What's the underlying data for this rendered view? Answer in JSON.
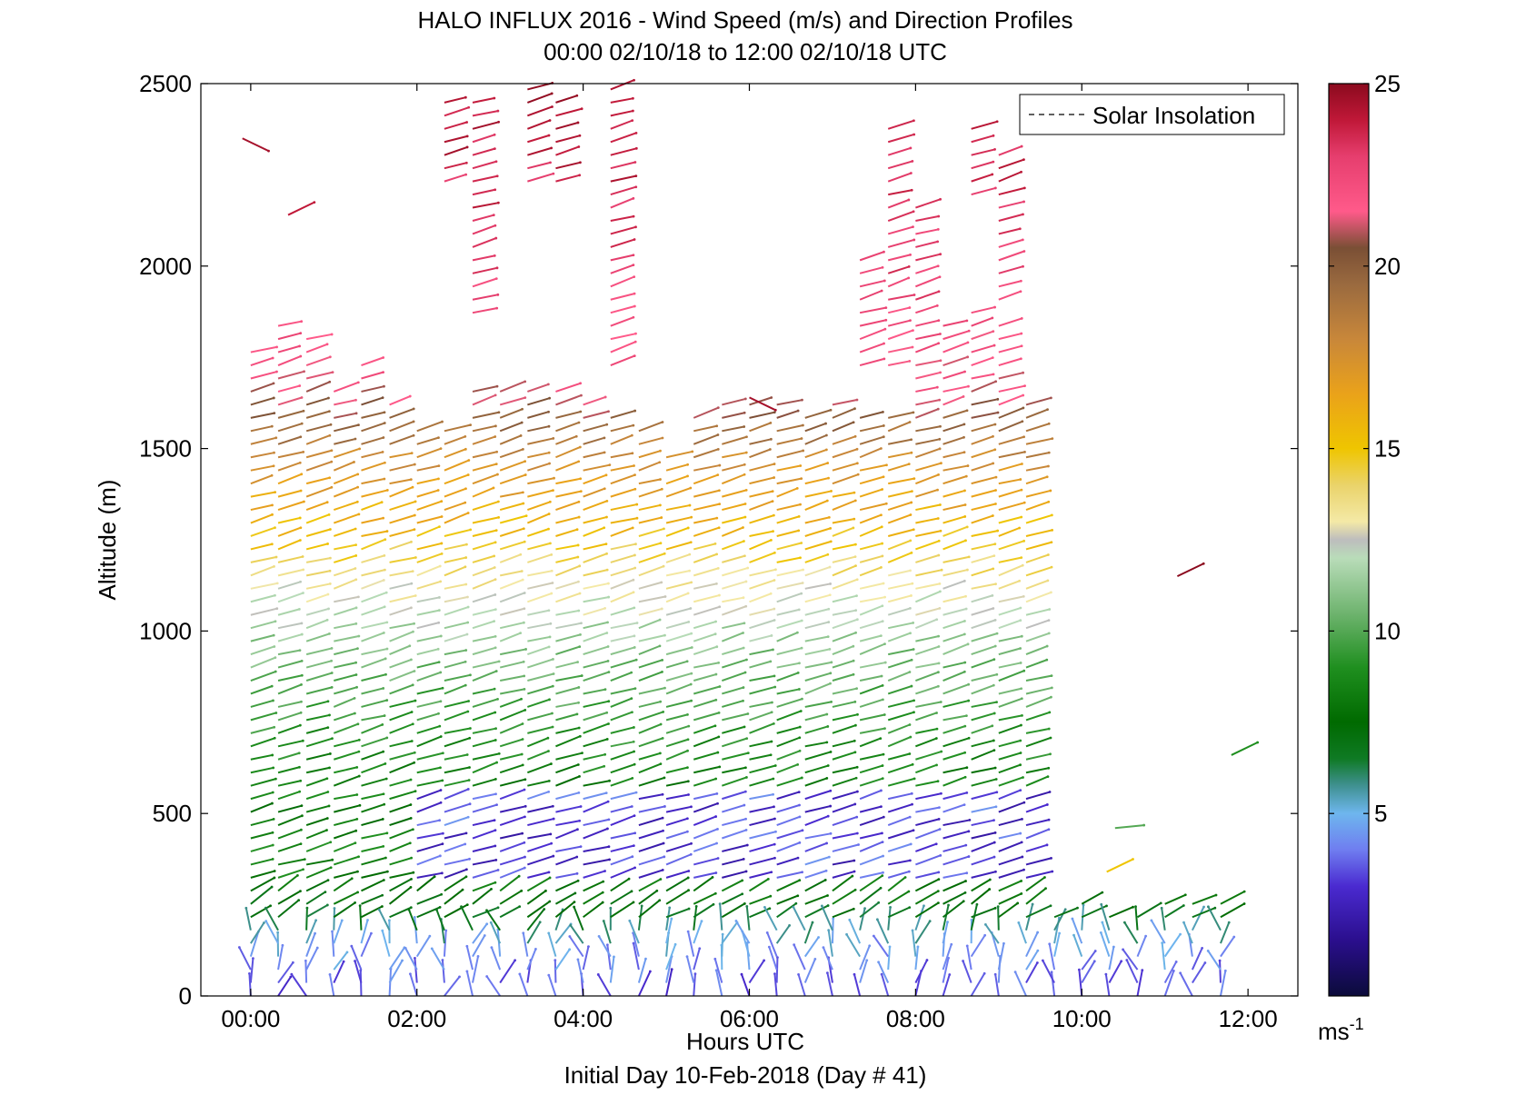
{
  "chart_data": {
    "type": "quiver",
    "title": "HALO INFLUX 2016 - Wind Speed (m/s) and Direction Profiles",
    "subtitle": "00:00 02/10/18 to 12:00 02/10/18  UTC",
    "xlabel": "Hours UTC",
    "xlabel2": "Initial Day 10-Feb-2018 (Day # 41)",
    "ylabel": "Altitude (m)",
    "xlim": [
      -0.6,
      12.6
    ],
    "ylim": [
      0,
      2500
    ],
    "xticks": [
      0,
      2,
      4,
      6,
      8,
      10,
      12
    ],
    "xtick_labels": [
      "00:00",
      "02:00",
      "04:00",
      "06:00",
      "08:00",
      "10:00",
      "12:00"
    ],
    "yticks": [
      0,
      500,
      1000,
      1500,
      2000,
      2500
    ],
    "ytick_labels": [
      "0",
      "500",
      "1000",
      "1500",
      "2000",
      "2500"
    ],
    "legend": {
      "entries": [
        "Solar Insolation"
      ],
      "placement": "top-right"
    },
    "colorbar": {
      "range": [
        0,
        25
      ],
      "ticks": [
        5,
        10,
        15,
        20,
        25
      ],
      "tick_labels": [
        "5",
        "10",
        "15",
        "20",
        "25"
      ],
      "unit": "ms",
      "unit_sup": "-1",
      "stops": [
        [
          0,
          "#0b0b3a"
        ],
        [
          1.5,
          "#2a0e8c"
        ],
        [
          3,
          "#4a2ad0"
        ],
        [
          4,
          "#6f7df0"
        ],
        [
          5,
          "#6eb6ee"
        ],
        [
          5.8,
          "#3d8f8c"
        ],
        [
          6.5,
          "#0f7a24"
        ],
        [
          7.5,
          "#006a00"
        ],
        [
          9,
          "#1f8f1f"
        ],
        [
          10.5,
          "#6fb46f"
        ],
        [
          12,
          "#b9dcb9"
        ],
        [
          12.5,
          "#bdbdbd"
        ],
        [
          13,
          "#f4e9a6"
        ],
        [
          14,
          "#ead36a"
        ],
        [
          15,
          "#efc500"
        ],
        [
          16.5,
          "#eaa21a"
        ],
        [
          18,
          "#c8873a"
        ],
        [
          19.5,
          "#9a6a3f"
        ],
        [
          20.5,
          "#7a4f35"
        ],
        [
          21.5,
          "#ff5a8a"
        ],
        [
          23,
          "#e63e6e"
        ],
        [
          24,
          "#c01838"
        ],
        [
          25,
          "#8b0a1e"
        ]
      ]
    },
    "profile_times_h": [
      0,
      0.33,
      0.67,
      1,
      1.33,
      1.67,
      2,
      2.33,
      2.67,
      3,
      3.33,
      3.67,
      4,
      4.33,
      4.67,
      5,
      5.33,
      5.67,
      6,
      6.33,
      6.67,
      7,
      7.33,
      7.67,
      8,
      8.33,
      8.67,
      9,
      9.33,
      9.67,
      10,
      10.33,
      10.67,
      11,
      11.33,
      11.67
    ],
    "profile_top_m": [
      1790,
      1870,
      1830,
      1690,
      1740,
      1650,
      1560,
      2480,
      2480,
      1660,
      2490,
      2480,
      1620,
      2490,
      1570,
      1510,
      1600,
      1620,
      1620,
      1620,
      1610,
      1620,
      2040,
      2390,
      2180,
      1860,
      2390,
      2330,
      1650,
      250,
      260,
      240,
      240,
      260,
      280,
      280
    ],
    "profile_gap_m": [
      [],
      [],
      [],
      [],
      [],
      [],
      [],
      [
        [
          1560,
          2200
        ]
      ],
      [
        [
          1660,
          1860
        ]
      ],
      [],
      [
        [
          1660,
          2200
        ]
      ],
      [
        [
          1660,
          2200
        ]
      ],
      [],
      [
        [
          1620,
          1700
        ]
      ],
      [],
      [],
      [],
      [],
      [],
      [],
      [],
      [],
      [
        [
          1620,
          1700
        ]
      ],
      [
        [
          1620,
          1700
        ]
      ],
      [],
      [],
      [
        [
          1880,
          2180
        ]
      ],
      [
        [
          1860,
          1900
        ]
      ],
      [],
      [],
      [],
      [],
      [],
      [],
      [],
      []
    ],
    "speed_profile_ms": [
      {
        "alt": 0,
        "speed": 3.5
      },
      {
        "alt": 120,
        "speed": 4.8
      },
      {
        "alt": 220,
        "speed": 7.2
      },
      {
        "alt": 350,
        "speed": 8.5
      },
      {
        "alt": 500,
        "speed": 8.0
      },
      {
        "alt": 700,
        "speed": 9.0
      },
      {
        "alt": 900,
        "speed": 10.5
      },
      {
        "alt": 1100,
        "speed": 12.8
      },
      {
        "alt": 1250,
        "speed": 15.2
      },
      {
        "alt": 1450,
        "speed": 17.5
      },
      {
        "alt": 1650,
        "speed": 21.5
      },
      {
        "alt": 1900,
        "speed": 22.5
      },
      {
        "alt": 2200,
        "speed": 23.5
      },
      {
        "alt": 2500,
        "speed": 24.5
      }
    ],
    "isolated_vectors": [
      {
        "t": -0.1,
        "alt": 2350,
        "speed": 24.5,
        "dir": "NW"
      },
      {
        "t": 0.45,
        "alt": 2140,
        "speed": 24,
        "dir": "SW"
      },
      {
        "t": 6.0,
        "alt": 1640,
        "speed": 24.5,
        "dir": "NW"
      },
      {
        "t": 11.15,
        "alt": 1150,
        "speed": 25,
        "dir": "SW"
      },
      {
        "t": 11.8,
        "alt": 660,
        "speed": 9,
        "dir": "SW"
      },
      {
        "t": 10.4,
        "alt": 460,
        "speed": 10,
        "dir": "W"
      },
      {
        "t": 10.3,
        "alt": 340,
        "speed": 15,
        "dir": "SW"
      }
    ]
  }
}
